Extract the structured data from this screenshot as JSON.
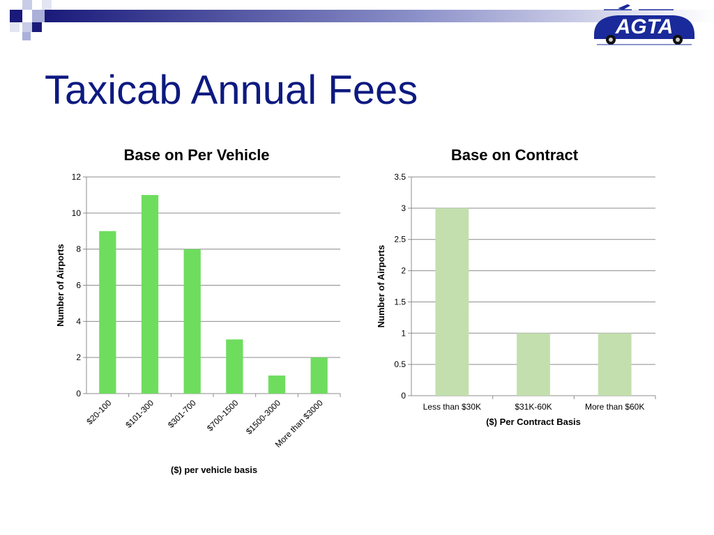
{
  "slide": {
    "title": "Taxicab Annual Fees"
  },
  "logo": {
    "text": "AGTA"
  },
  "colors": {
    "title": "#0d1a80",
    "header_blue": "#1a1a7a",
    "header_light": "#aab0d8",
    "bar_left": "#6edd5e",
    "bar_right": "#c3dfae",
    "grid": "#8c8c8c"
  },
  "chart_data": [
    {
      "type": "bar",
      "title": "Base on Per Vehicle",
      "xlabel": "($) per vehicle basis",
      "ylabel": "Number of Airports",
      "categories": [
        "$20-100",
        "$101-300",
        "$301-700",
        "$700-1500",
        "$1500-3000",
        "More than $3000"
      ],
      "values": [
        9,
        11,
        8,
        3,
        1,
        2
      ],
      "ylim": [
        0,
        12
      ],
      "yticks": [
        "0",
        "2",
        "4",
        "6",
        "8",
        "10",
        "12"
      ],
      "grid": true
    },
    {
      "type": "bar",
      "title": "Base on Contract",
      "xlabel": "($) Per Contract Basis",
      "ylabel": "Number of Airports",
      "categories": [
        "Less than $30K",
        "$31K-60K",
        "More than $60K"
      ],
      "values": [
        3,
        1,
        1
      ],
      "ylim": [
        0,
        3.5
      ],
      "yticks": [
        "0",
        "0.5",
        "1",
        "1.5",
        "2",
        "2.5",
        "3",
        "3.5"
      ],
      "grid": true
    }
  ]
}
